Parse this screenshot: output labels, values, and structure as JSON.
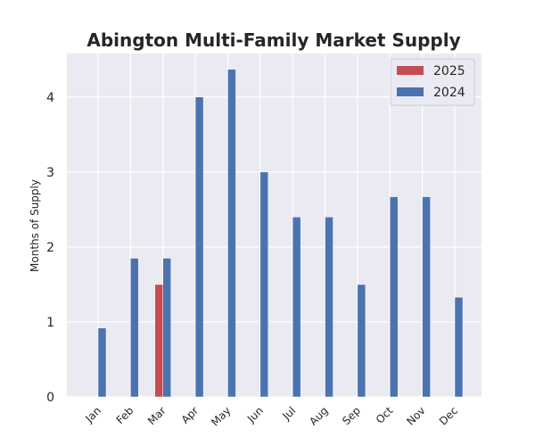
{
  "chart_data": {
    "type": "bar",
    "title": "Abington Multi-Family Market Supply",
    "xlabel": "",
    "ylabel": "Months of Supply",
    "categories": [
      "Jan",
      "Feb",
      "Mar",
      "Apr",
      "May",
      "Jun",
      "Jul",
      "Aug",
      "Sep",
      "Oct",
      "Nov",
      "Dec"
    ],
    "series": [
      {
        "name": "2025",
        "color": "#c44e52",
        "values": [
          null,
          null,
          1.5,
          null,
          null,
          null,
          null,
          null,
          null,
          null,
          null,
          null
        ]
      },
      {
        "name": "2024",
        "color": "#4c72b0",
        "values": [
          0.92,
          1.85,
          1.85,
          4.0,
          4.37,
          3.0,
          2.4,
          2.4,
          1.5,
          2.67,
          2.67,
          1.33
        ]
      }
    ],
    "ylim": [
      0,
      4.58
    ],
    "yticks": [
      0,
      1,
      2,
      3,
      4
    ],
    "grid": true,
    "legend_position": "top-right",
    "background_color": "#eaeaf2",
    "grid_color": "#ffffff"
  }
}
